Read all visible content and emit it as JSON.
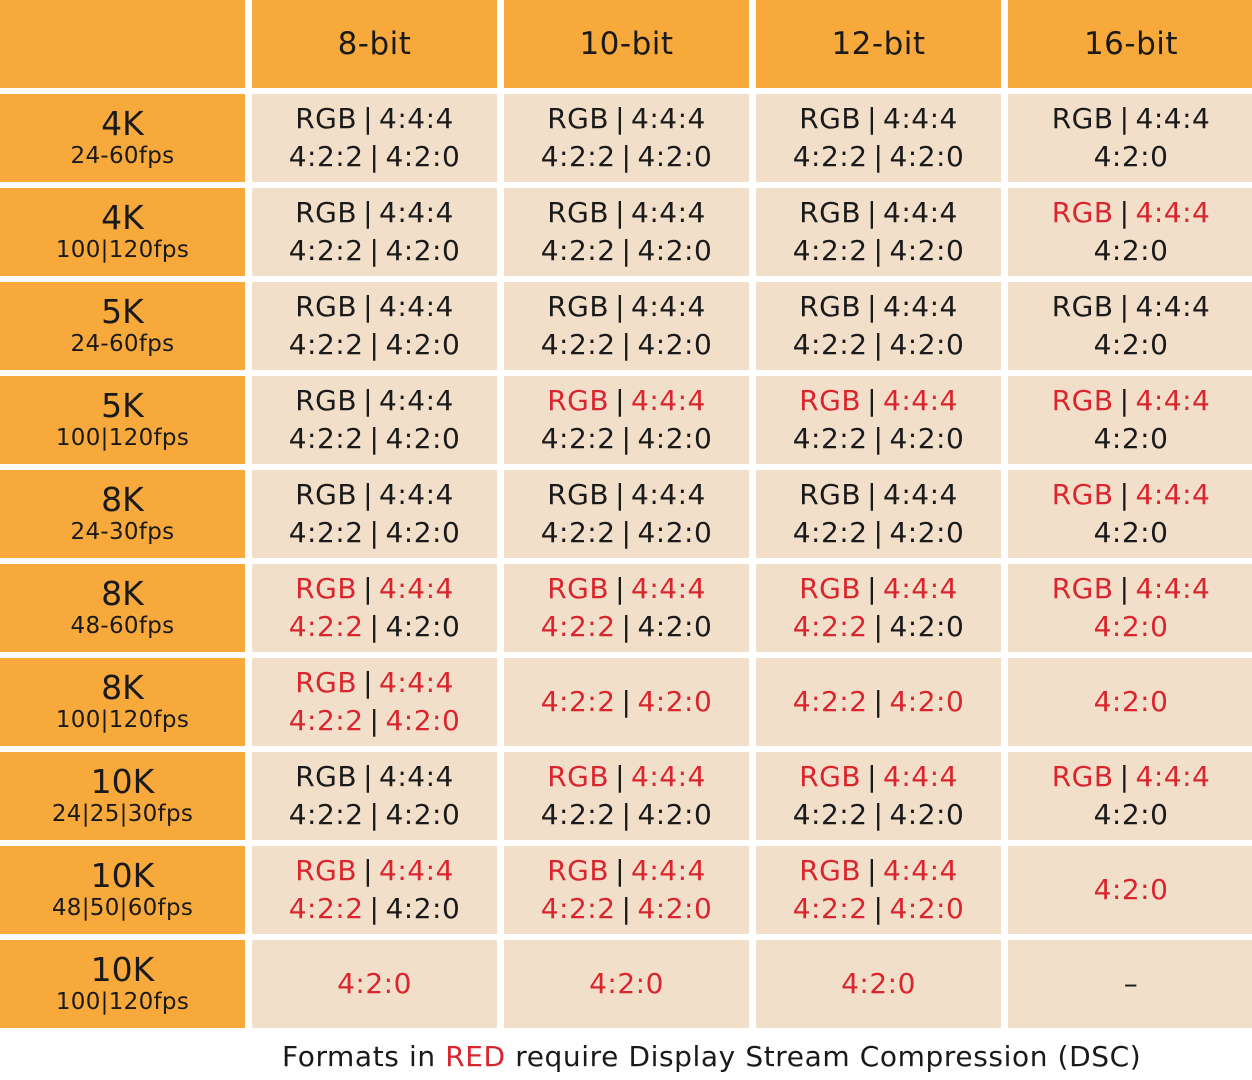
{
  "colors": {
    "header_bg": "#f8a93b",
    "cell_bg": "#f2dfca",
    "dsc_red": "#d9262e",
    "text": "#1a1a1a"
  },
  "header": {
    "corner": "",
    "columns": [
      "8-bit",
      "10-bit",
      "12-bit",
      "16-bit"
    ]
  },
  "rows": [
    {
      "resolution": "4K",
      "fps": "24-60fps",
      "cells": [
        {
          "line1": [
            [
              "RGB",
              "black"
            ],
            [
              "4:4:4",
              "black"
            ]
          ],
          "line2": [
            [
              "4:2:2",
              "black"
            ],
            [
              "4:2:0",
              "black"
            ]
          ]
        },
        {
          "line1": [
            [
              "RGB",
              "black"
            ],
            [
              "4:4:4",
              "black"
            ]
          ],
          "line2": [
            [
              "4:2:2",
              "black"
            ],
            [
              "4:2:0",
              "black"
            ]
          ]
        },
        {
          "line1": [
            [
              "RGB",
              "black"
            ],
            [
              "4:4:4",
              "black"
            ]
          ],
          "line2": [
            [
              "4:2:2",
              "black"
            ],
            [
              "4:2:0",
              "black"
            ]
          ]
        },
        {
          "line1": [
            [
              "RGB",
              "black"
            ],
            [
              "4:4:4",
              "black"
            ]
          ],
          "line2": [
            [
              "4:2:0",
              "black"
            ]
          ]
        }
      ]
    },
    {
      "resolution": "4K",
      "fps": "100|120fps",
      "cells": [
        {
          "line1": [
            [
              "RGB",
              "black"
            ],
            [
              "4:4:4",
              "black"
            ]
          ],
          "line2": [
            [
              "4:2:2",
              "black"
            ],
            [
              "4:2:0",
              "black"
            ]
          ]
        },
        {
          "line1": [
            [
              "RGB",
              "black"
            ],
            [
              "4:4:4",
              "black"
            ]
          ],
          "line2": [
            [
              "4:2:2",
              "black"
            ],
            [
              "4:2:0",
              "black"
            ]
          ]
        },
        {
          "line1": [
            [
              "RGB",
              "black"
            ],
            [
              "4:4:4",
              "black"
            ]
          ],
          "line2": [
            [
              "4:2:2",
              "black"
            ],
            [
              "4:2:0",
              "black"
            ]
          ]
        },
        {
          "line1": [
            [
              "RGB",
              "red"
            ],
            [
              "4:4:4",
              "red"
            ]
          ],
          "line2": [
            [
              "4:2:0",
              "black"
            ]
          ]
        }
      ]
    },
    {
      "resolution": "5K",
      "fps": "24-60fps",
      "cells": [
        {
          "line1": [
            [
              "RGB",
              "black"
            ],
            [
              "4:4:4",
              "black"
            ]
          ],
          "line2": [
            [
              "4:2:2",
              "black"
            ],
            [
              "4:2:0",
              "black"
            ]
          ]
        },
        {
          "line1": [
            [
              "RGB",
              "black"
            ],
            [
              "4:4:4",
              "black"
            ]
          ],
          "line2": [
            [
              "4:2:2",
              "black"
            ],
            [
              "4:2:0",
              "black"
            ]
          ]
        },
        {
          "line1": [
            [
              "RGB",
              "black"
            ],
            [
              "4:4:4",
              "black"
            ]
          ],
          "line2": [
            [
              "4:2:2",
              "black"
            ],
            [
              "4:2:0",
              "black"
            ]
          ]
        },
        {
          "line1": [
            [
              "RGB",
              "black"
            ],
            [
              "4:4:4",
              "black"
            ]
          ],
          "line2": [
            [
              "4:2:0",
              "black"
            ]
          ]
        }
      ]
    },
    {
      "resolution": "5K",
      "fps": "100|120fps",
      "cells": [
        {
          "line1": [
            [
              "RGB",
              "black"
            ],
            [
              "4:4:4",
              "black"
            ]
          ],
          "line2": [
            [
              "4:2:2",
              "black"
            ],
            [
              "4:2:0",
              "black"
            ]
          ]
        },
        {
          "line1": [
            [
              "RGB",
              "red"
            ],
            [
              "4:4:4",
              "red"
            ]
          ],
          "line2": [
            [
              "4:2:2",
              "black"
            ],
            [
              "4:2:0",
              "black"
            ]
          ]
        },
        {
          "line1": [
            [
              "RGB",
              "red"
            ],
            [
              "4:4:4",
              "red"
            ]
          ],
          "line2": [
            [
              "4:2:2",
              "black"
            ],
            [
              "4:2:0",
              "black"
            ]
          ]
        },
        {
          "line1": [
            [
              "RGB",
              "red"
            ],
            [
              "4:4:4",
              "red"
            ]
          ],
          "line2": [
            [
              "4:2:0",
              "black"
            ]
          ]
        }
      ]
    },
    {
      "resolution": "8K",
      "fps": "24-30fps",
      "cells": [
        {
          "line1": [
            [
              "RGB",
              "black"
            ],
            [
              "4:4:4",
              "black"
            ]
          ],
          "line2": [
            [
              "4:2:2",
              "black"
            ],
            [
              "4:2:0",
              "black"
            ]
          ]
        },
        {
          "line1": [
            [
              "RGB",
              "black"
            ],
            [
              "4:4:4",
              "black"
            ]
          ],
          "line2": [
            [
              "4:2:2",
              "black"
            ],
            [
              "4:2:0",
              "black"
            ]
          ]
        },
        {
          "line1": [
            [
              "RGB",
              "black"
            ],
            [
              "4:4:4",
              "black"
            ]
          ],
          "line2": [
            [
              "4:2:2",
              "black"
            ],
            [
              "4:2:0",
              "black"
            ]
          ]
        },
        {
          "line1": [
            [
              "RGB",
              "red"
            ],
            [
              "4:4:4",
              "red"
            ]
          ],
          "line2": [
            [
              "4:2:0",
              "black"
            ]
          ]
        }
      ]
    },
    {
      "resolution": "8K",
      "fps": "48-60fps",
      "cells": [
        {
          "line1": [
            [
              "RGB",
              "red"
            ],
            [
              "4:4:4",
              "red"
            ]
          ],
          "line2": [
            [
              "4:2:2",
              "red"
            ],
            [
              "4:2:0",
              "black"
            ]
          ]
        },
        {
          "line1": [
            [
              "RGB",
              "red"
            ],
            [
              "4:4:4",
              "red"
            ]
          ],
          "line2": [
            [
              "4:2:2",
              "red"
            ],
            [
              "4:2:0",
              "black"
            ]
          ]
        },
        {
          "line1": [
            [
              "RGB",
              "red"
            ],
            [
              "4:4:4",
              "red"
            ]
          ],
          "line2": [
            [
              "4:2:2",
              "red"
            ],
            [
              "4:2:0",
              "black"
            ]
          ]
        },
        {
          "line1": [
            [
              "RGB",
              "red"
            ],
            [
              "4:4:4",
              "red"
            ]
          ],
          "line2": [
            [
              "4:2:0",
              "red"
            ]
          ]
        }
      ]
    },
    {
      "resolution": "8K",
      "fps": "100|120fps",
      "cells": [
        {
          "line1": [
            [
              "RGB",
              "red"
            ],
            [
              "4:4:4",
              "red"
            ]
          ],
          "line2": [
            [
              "4:2:2",
              "red"
            ],
            [
              "4:2:0",
              "red"
            ]
          ]
        },
        {
          "line1": [
            [
              "4:2:2",
              "red"
            ],
            [
              "4:2:0",
              "red"
            ]
          ],
          "line2": []
        },
        {
          "line1": [
            [
              "4:2:2",
              "red"
            ],
            [
              "4:2:0",
              "red"
            ]
          ],
          "line2": []
        },
        {
          "line1": [
            [
              "4:2:0",
              "red"
            ]
          ],
          "line2": []
        }
      ]
    },
    {
      "resolution": "10K",
      "fps": "24|25|30fps",
      "cells": [
        {
          "line1": [
            [
              "RGB",
              "black"
            ],
            [
              "4:4:4",
              "black"
            ]
          ],
          "line2": [
            [
              "4:2:2",
              "black"
            ],
            [
              "4:2:0",
              "black"
            ]
          ]
        },
        {
          "line1": [
            [
              "RGB",
              "red"
            ],
            [
              "4:4:4",
              "red"
            ]
          ],
          "line2": [
            [
              "4:2:2",
              "black"
            ],
            [
              "4:2:0",
              "black"
            ]
          ]
        },
        {
          "line1": [
            [
              "RGB",
              "red"
            ],
            [
              "4:4:4",
              "red"
            ]
          ],
          "line2": [
            [
              "4:2:2",
              "black"
            ],
            [
              "4:2:0",
              "black"
            ]
          ]
        },
        {
          "line1": [
            [
              "RGB",
              "red"
            ],
            [
              "4:4:4",
              "red"
            ]
          ],
          "line2": [
            [
              "4:2:0",
              "black"
            ]
          ]
        }
      ]
    },
    {
      "resolution": "10K",
      "fps": "48|50|60fps",
      "cells": [
        {
          "line1": [
            [
              "RGB",
              "red"
            ],
            [
              "4:4:4",
              "red"
            ]
          ],
          "line2": [
            [
              "4:2:2",
              "red"
            ],
            [
              "4:2:0",
              "black"
            ]
          ]
        },
        {
          "line1": [
            [
              "RGB",
              "red"
            ],
            [
              "4:4:4",
              "red"
            ]
          ],
          "line2": [
            [
              "4:2:2",
              "red"
            ],
            [
              "4:2:0",
              "red"
            ]
          ]
        },
        {
          "line1": [
            [
              "RGB",
              "red"
            ],
            [
              "4:4:4",
              "red"
            ]
          ],
          "line2": [
            [
              "4:2:2",
              "red"
            ],
            [
              "4:2:0",
              "red"
            ]
          ]
        },
        {
          "line1": [
            [
              "4:2:0",
              "red"
            ]
          ],
          "line2": []
        }
      ]
    },
    {
      "resolution": "10K",
      "fps": "100|120fps",
      "cells": [
        {
          "line1": [
            [
              "4:2:0",
              "red"
            ]
          ],
          "line2": []
        },
        {
          "line1": [
            [
              "4:2:0",
              "red"
            ]
          ],
          "line2": []
        },
        {
          "line1": [
            [
              "4:2:0",
              "red"
            ]
          ],
          "line2": []
        },
        {
          "line1": [
            [
              "–",
              "black"
            ]
          ],
          "line2": []
        }
      ]
    }
  ],
  "separator": "|",
  "footer": {
    "prefix": "Formats in ",
    "highlight": "RED",
    "suffix": " require Display Stream Compression (DSC)"
  },
  "chart_data": {
    "type": "table",
    "title": "",
    "columns": [
      "",
      "8-bit",
      "10-bit",
      "12-bit",
      "16-bit"
    ],
    "rows": [
      [
        "4K 24-60fps",
        "RGB | 4:4:4 / 4:2:2 | 4:2:0",
        "RGB | 4:4:4 / 4:2:2 | 4:2:0",
        "RGB | 4:4:4 / 4:2:2 | 4:2:0",
        "RGB | 4:4:4 / 4:2:0"
      ],
      [
        "4K 100|120fps",
        "RGB | 4:4:4 / 4:2:2 | 4:2:0",
        "RGB | 4:4:4 / 4:2:2 | 4:2:0",
        "RGB | 4:4:4 / 4:2:2 | 4:2:0",
        "RGB* | 4:4:4* / 4:2:0"
      ],
      [
        "5K 24-60fps",
        "RGB | 4:4:4 / 4:2:2 | 4:2:0",
        "RGB | 4:4:4 / 4:2:2 | 4:2:0",
        "RGB | 4:4:4 / 4:2:2 | 4:2:0",
        "RGB | 4:4:4 / 4:2:0"
      ],
      [
        "5K 100|120fps",
        "RGB | 4:4:4 / 4:2:2 | 4:2:0",
        "RGB* | 4:4:4* / 4:2:2 | 4:2:0",
        "RGB* | 4:4:4* / 4:2:2 | 4:2:0",
        "RGB* | 4:4:4* / 4:2:0"
      ],
      [
        "8K 24-30fps",
        "RGB | 4:4:4 / 4:2:2 | 4:2:0",
        "RGB | 4:4:4 / 4:2:2 | 4:2:0",
        "RGB | 4:4:4 / 4:2:2 | 4:2:0",
        "RGB* | 4:4:4* / 4:2:0"
      ],
      [
        "8K 48-60fps",
        "RGB* | 4:4:4* / 4:2:2* | 4:2:0",
        "RGB* | 4:4:4* / 4:2:2* | 4:2:0",
        "RGB* | 4:4:4* / 4:2:2* | 4:2:0",
        "RGB* | 4:4:4* / 4:2:0*"
      ],
      [
        "8K 100|120fps",
        "RGB* | 4:4:4* / 4:2:2* | 4:2:0*",
        "4:2:2* | 4:2:0*",
        "4:2:2* | 4:2:0*",
        "4:2:0*"
      ],
      [
        "10K 24|25|30fps",
        "RGB | 4:4:4 / 4:2:2 | 4:2:0",
        "RGB* | 4:4:4* / 4:2:2 | 4:2:0",
        "RGB* | 4:4:4* / 4:2:2 | 4:2:0",
        "RGB* | 4:4:4* / 4:2:0"
      ],
      [
        "10K 48|50|60fps",
        "RGB* | 4:4:4* / 4:2:2* | 4:2:0",
        "RGB* | 4:4:4* / 4:2:2* | 4:2:0*",
        "RGB* | 4:4:4* / 4:2:2* | 4:2:0*",
        "4:2:0*"
      ],
      [
        "10K 100|120fps",
        "4:2:0*",
        "4:2:0*",
        "4:2:0*",
        "–"
      ]
    ],
    "annotations": [
      "* = shown in RED: requires Display Stream Compression (DSC)"
    ]
  }
}
